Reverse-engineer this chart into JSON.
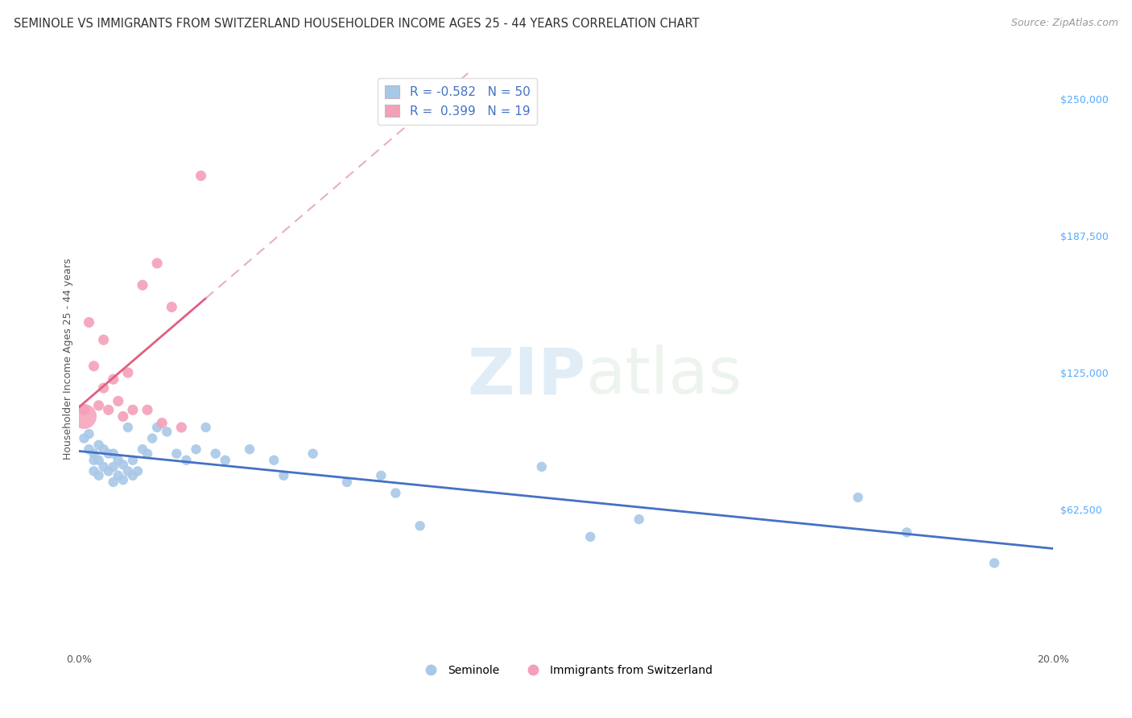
{
  "title": "SEMINOLE VS IMMIGRANTS FROM SWITZERLAND HOUSEHOLDER INCOME AGES 25 - 44 YEARS CORRELATION CHART",
  "source": "Source: ZipAtlas.com",
  "ylabel": "Householder Income Ages 25 - 44 years",
  "xlim": [
    0.0,
    0.2
  ],
  "ylim": [
    0,
    262500
  ],
  "yticks_right": [
    62500,
    125000,
    187500,
    250000
  ],
  "ytick_labels_right": [
    "$62,500",
    "$125,000",
    "$187,500",
    "$250,000"
  ],
  "grid_color": "#cccccc",
  "background_color": "#ffffff",
  "watermark_zip": "ZIP",
  "watermark_atlas": "atlas",
  "seminole_color": "#a8c8e8",
  "swiss_color": "#f4a0b8",
  "seminole_line_color": "#4472c4",
  "swiss_line_color": "#e06080",
  "swiss_dash_color": "#e8b0c0",
  "R_seminole": -0.582,
  "N_seminole": 50,
  "R_swiss": 0.399,
  "N_swiss": 19,
  "seminole_x": [
    0.001,
    0.002,
    0.002,
    0.003,
    0.003,
    0.003,
    0.004,
    0.004,
    0.004,
    0.005,
    0.005,
    0.006,
    0.006,
    0.007,
    0.007,
    0.007,
    0.008,
    0.008,
    0.009,
    0.009,
    0.01,
    0.01,
    0.011,
    0.011,
    0.012,
    0.013,
    0.014,
    0.015,
    0.016,
    0.018,
    0.02,
    0.022,
    0.024,
    0.026,
    0.028,
    0.03,
    0.035,
    0.04,
    0.042,
    0.048,
    0.055,
    0.062,
    0.065,
    0.07,
    0.095,
    0.105,
    0.115,
    0.16,
    0.17,
    0.188
  ],
  "seminole_y": [
    95000,
    97000,
    90000,
    88000,
    85000,
    80000,
    92000,
    85000,
    78000,
    90000,
    82000,
    88000,
    80000,
    88000,
    82000,
    75000,
    85000,
    78000,
    83000,
    76000,
    100000,
    80000,
    85000,
    78000,
    80000,
    90000,
    88000,
    95000,
    100000,
    98000,
    88000,
    85000,
    90000,
    100000,
    88000,
    85000,
    90000,
    85000,
    78000,
    88000,
    75000,
    78000,
    70000,
    55000,
    82000,
    50000,
    58000,
    68000,
    52000,
    38000
  ],
  "swiss_x": [
    0.001,
    0.002,
    0.003,
    0.004,
    0.005,
    0.005,
    0.006,
    0.007,
    0.008,
    0.009,
    0.01,
    0.011,
    0.013,
    0.014,
    0.016,
    0.017,
    0.019,
    0.021,
    0.025
  ],
  "swiss_y": [
    108000,
    148000,
    128000,
    110000,
    140000,
    118000,
    108000,
    122000,
    112000,
    105000,
    125000,
    108000,
    165000,
    108000,
    175000,
    102000,
    155000,
    100000,
    215000
  ],
  "title_fontsize": 10.5,
  "source_fontsize": 9,
  "axis_label_fontsize": 9,
  "tick_fontsize": 9,
  "legend_fontsize": 11
}
